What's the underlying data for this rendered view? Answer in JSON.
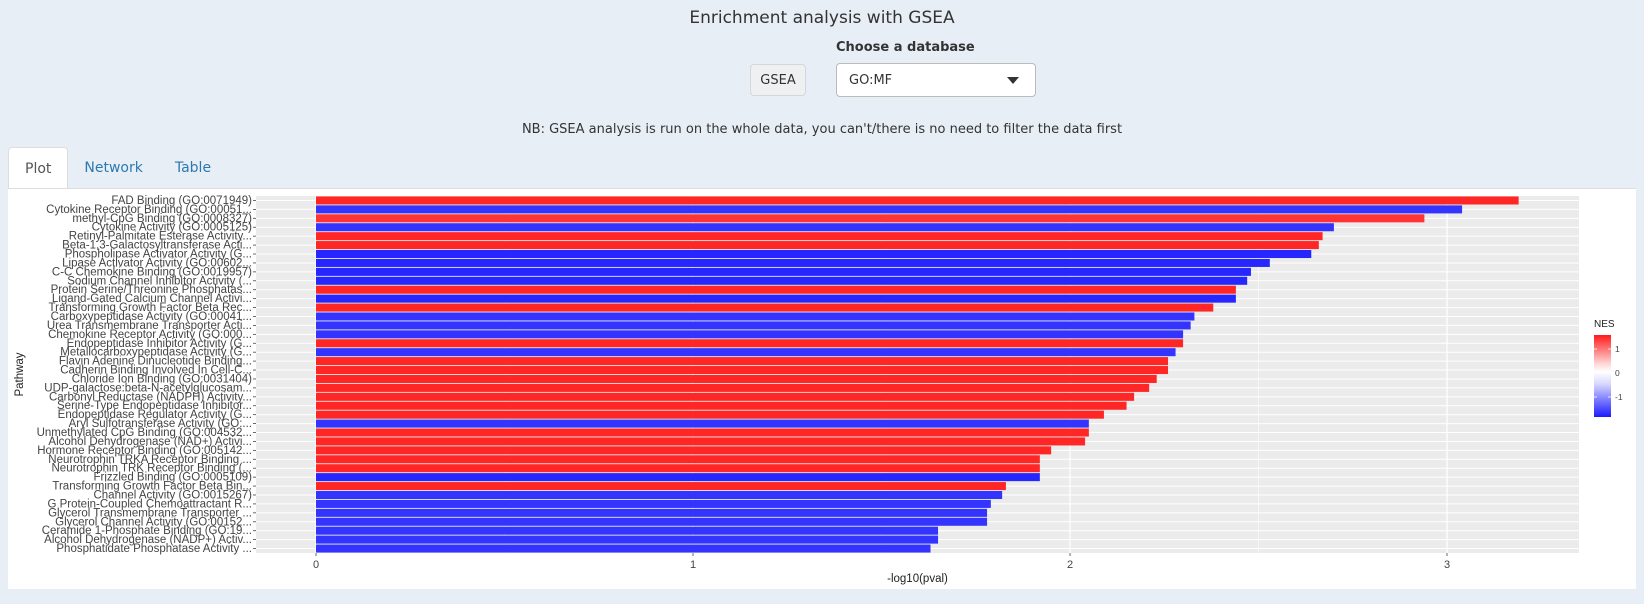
{
  "header": {
    "title": "Enrichment analysis with GSEA",
    "gsea_button": "GSEA",
    "db_label": "Choose a database",
    "db_selected": "GO:MF",
    "note": "NB: GSEA analysis is run on the whole data, you can't/there is no need to filter the data first"
  },
  "tabs": [
    {
      "label": "Plot"
    },
    {
      "label": "Network"
    },
    {
      "label": "Table"
    }
  ],
  "colors": {
    "positive": "#ff2a2a",
    "negative": "#2a2aff",
    "panel_bg": "#ebebeb"
  },
  "chart_data": {
    "type": "bar",
    "orientation": "horizontal",
    "xlabel": "-log10(pval)",
    "ylabel": "Pathway",
    "xlim": [
      0,
      3.4
    ],
    "xticks": [
      0,
      1,
      2,
      3
    ],
    "legend": {
      "title": "NES",
      "ticks": [
        1,
        0,
        -1
      ],
      "placement": "right"
    },
    "categories": [
      "FAD Binding (GO:0071949)",
      "Cytokine Receptor Binding (GO:00051...",
      "methyl-CpG Binding (GO:0008327)",
      "Cytokine Activity (GO:0005125)",
      "Retinyl-Palmitate Esterase Activity...",
      "Beta-1,3-Galactosyltransferase Acti...",
      "Phospholipase Activator Activity (G...",
      "Lipase Activator Activity (GO:00602...",
      "C-C Chemokine Binding (GO:0019957)",
      "Sodium Channel Inhibitor Activity (...",
      "Protein Serine/Threonine Phosphatas...",
      "Ligand-Gated Calcium Channel Activi...",
      "Transforming Growth Factor Beta Rec...",
      "Carboxypeptidase Activity (GO:00041...",
      "Urea Transmembrane Transporter Acti...",
      "Chemokine Receptor Activity (GO:000...",
      "Endopeptidase Inhibitor Activity (G...",
      "Metallocarboxypeptidase Activity (G...",
      "Flavin Adenine Dinucleotide Binding...",
      "Cadherin Binding Involved In Cell-C...",
      "Chloride Ion Binding (GO:0031404)",
      "UDP-galactose:beta-N-acetylglucosam...",
      "Carbonyl Reductase (NADPH) Activity...",
      "Serine-Type Endopeptidase Inhibitor...",
      "Endopeptidase Regulator Activity (G...",
      "Aryl Sulfotransferase Activity (GO:...",
      "Unmethylated CpG Binding (GO:004532...",
      "Alcohol Dehydrogenase (NAD+) Activi...",
      "Hormone Receptor Binding (GO:005142...",
      "Neurotrophin TRKA Receptor Binding ...",
      "Neurotrophin TRK Receptor Binding (...",
      "Frizzled Binding (GO:0005109)",
      "Transforming Growth Factor Beta Bin...",
      "Channel Activity (GO:0015267)",
      "G Protein-Coupled Chemoattractant R...",
      "Glycerol Transmembrane Transporter ...",
      "Glycerol Channel Activity (GO:00152...",
      "Ceramide 1-Phosphate Binding (GO:19...",
      "Alcohol Dehydrogenase (NADP+) Activ...",
      "Phosphatidate Phosphatase Activity ..."
    ],
    "values": [
      3.19,
      3.04,
      2.94,
      2.7,
      2.67,
      2.66,
      2.64,
      2.53,
      2.48,
      2.47,
      2.44,
      2.44,
      2.38,
      2.33,
      2.32,
      2.3,
      2.3,
      2.28,
      2.26,
      2.26,
      2.23,
      2.21,
      2.17,
      2.15,
      2.09,
      2.05,
      2.05,
      2.04,
      1.95,
      1.92,
      1.92,
      1.92,
      1.83,
      1.82,
      1.79,
      1.78,
      1.78,
      1.65,
      1.65,
      1.63
    ],
    "nes": [
      1.6,
      -1.5,
      1.5,
      -1.5,
      1.6,
      1.6,
      -1.8,
      -1.8,
      -1.8,
      -1.8,
      1.6,
      -1.6,
      1.6,
      -1.5,
      -1.5,
      -1.5,
      1.6,
      -1.5,
      1.6,
      1.6,
      1.6,
      1.6,
      1.6,
      1.6,
      1.6,
      -1.5,
      1.6,
      1.6,
      1.7,
      1.7,
      1.7,
      -1.6,
      1.6,
      -1.5,
      -1.5,
      -1.5,
      -1.5,
      -1.5,
      -1.5,
      -1.5
    ]
  }
}
